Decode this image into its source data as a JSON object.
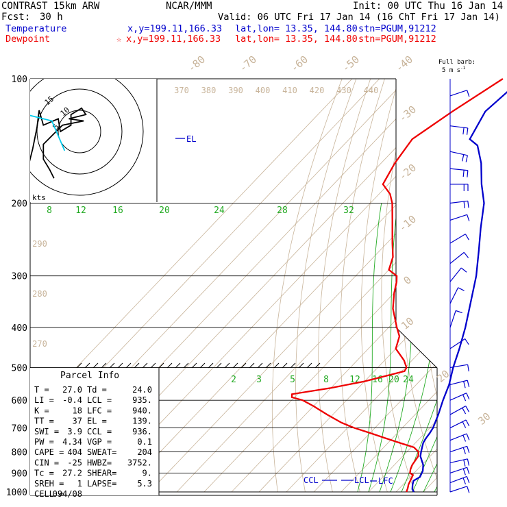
{
  "header": {
    "model": "CONTRAST 15km ARW",
    "center": "NCAR/MMM",
    "init": "Init: 00 UTC Thu 16 Jan 14",
    "fcst_label": "Fcst:",
    "fcst_value": "30 h",
    "valid": "Valid: 06 UTC Fri 17 Jan 14 (16 ChT Fri 17 Jan 14)",
    "temp_label": "Temperature",
    "temp_loc": "x,y=199.11,166.33",
    "temp_latlon": "lat,lon= 13.35, 144.80",
    "temp_stn": "stn=PGUM,91212",
    "dew_label": "Dewpoint",
    "dew_loc": "x,y=199.11,166.33",
    "dew_latlon": "lat,lon= 13.35, 144.80",
    "dew_stn": "stn=PGUM,91212",
    "barb_label_1": "Full barb:",
    "barb_label_2": "5 m s",
    "barb_label_exp": "-1"
  },
  "colors": {
    "temperature": "#0000cc",
    "dewpoint": "#ee0000",
    "isotherm": "#c8b49a",
    "mixing_ratio": "#22aa22",
    "isobar": "#000000",
    "hodo_low": "#00ccee"
  },
  "parcel_info": {
    "title": "Parcel Info",
    "rows": [
      [
        "T  =",
        "27.0",
        "Td =",
        "24.0"
      ],
      [
        "LI =",
        "-0.4",
        "LCL =",
        "935."
      ],
      [
        "K  =",
        "18",
        "LFC =",
        "940."
      ],
      [
        "TT =",
        "37",
        "EL =",
        "139."
      ],
      [
        "SWI =",
        "3.9",
        "CCL =",
        "936."
      ],
      [
        "PW =",
        "4.34",
        "VGP =",
        "0.1"
      ],
      [
        "CAPE =",
        "404",
        "SWEAT=",
        "204"
      ],
      [
        "CIN =",
        "-25",
        "HWBZ=",
        "3752."
      ],
      [
        "Tc =",
        "27.2",
        "SHEAR=",
        "9."
      ],
      [
        "SREH =",
        "1",
        "LAPSE=",
        "5.3"
      ],
      [
        "CELL =",
        "094/08",
        "",
        ""
      ]
    ]
  },
  "chart_data": {
    "type": "skew-t",
    "y_axis": "pressure (hPa), log scale",
    "pressure_ticks": [
      100,
      200,
      300,
      400,
      500,
      600,
      700,
      800,
      900,
      1000
    ],
    "isotherm_labels": [
      "-80",
      "-70",
      "-60",
      "-50",
      "-40",
      "-30",
      "-20",
      "-10",
      "0",
      "10",
      "20",
      "30",
      "40"
    ],
    "theta_labels": [
      "370",
      "380",
      "390",
      "400",
      "410",
      "420",
      "430",
      "440"
    ],
    "theta_left_labels": [
      "290",
      "280",
      "270"
    ],
    "mixing_ratio_labels_upper": [
      "8",
      "12",
      "16",
      "20",
      "24",
      "28",
      "32"
    ],
    "mixing_ratio_labels_lower": [
      "2",
      "3",
      "5",
      "8",
      "12",
      "16",
      "20",
      "24"
    ],
    "temperature_profile": [
      {
        "p": 1000,
        "t": 26.5
      },
      {
        "p": 985,
        "t": 25.0
      },
      {
        "p": 960,
        "t": 23.5
      },
      {
        "p": 940,
        "t": 22.5
      },
      {
        "p": 920,
        "t": 23.5
      },
      {
        "p": 890,
        "t": 22.5
      },
      {
        "p": 860,
        "t": 20.5
      },
      {
        "p": 840,
        "t": 18.5
      },
      {
        "p": 820,
        "t": 16.5
      },
      {
        "p": 800,
        "t": 15.2
      },
      {
        "p": 780,
        "t": 14.0
      },
      {
        "p": 760,
        "t": 12.8
      },
      {
        "p": 740,
        "t": 12.2
      },
      {
        "p": 720,
        "t": 11.8
      },
      {
        "p": 700,
        "t": 11.2
      },
      {
        "p": 650,
        "t": 8.5
      },
      {
        "p": 600,
        "t": 5.2
      },
      {
        "p": 550,
        "t": 2.0
      },
      {
        "p": 500,
        "t": -2.5
      },
      {
        "p": 450,
        "t": -6.8
      },
      {
        "p": 400,
        "t": -12.0
      },
      {
        "p": 350,
        "t": -18.5
      },
      {
        "p": 300,
        "t": -26.0
      },
      {
        "p": 260,
        "t": -34.0
      },
      {
        "p": 230,
        "t": -41.0
      },
      {
        "p": 200,
        "t": -48.5
      },
      {
        "p": 180,
        "t": -56.0
      },
      {
        "p": 160,
        "t": -63.5
      },
      {
        "p": 145,
        "t": -71.0
      },
      {
        "p": 140,
        "t": -76.0
      },
      {
        "p": 120,
        "t": -80.0
      },
      {
        "p": 100,
        "t": -78.0
      }
    ],
    "dewpoint_profile": [
      {
        "p": 1000,
        "t": 23.8
      },
      {
        "p": 980,
        "t": 23.0
      },
      {
        "p": 960,
        "t": 22.0
      },
      {
        "p": 930,
        "t": 21.0
      },
      {
        "p": 910,
        "t": 20.3
      },
      {
        "p": 900,
        "t": 18.5
      },
      {
        "p": 880,
        "t": 17.3
      },
      {
        "p": 860,
        "t": 16.5
      },
      {
        "p": 820,
        "t": 15.7
      },
      {
        "p": 800,
        "t": 14.3
      },
      {
        "p": 780,
        "t": 11.0
      },
      {
        "p": 760,
        "t": 4.0
      },
      {
        "p": 740,
        "t": -3.0
      },
      {
        "p": 720,
        "t": -10.0
      },
      {
        "p": 700,
        "t": -17.5
      },
      {
        "p": 680,
        "t": -24.0
      },
      {
        "p": 650,
        "t": -32.0
      },
      {
        "p": 620,
        "t": -40.0
      },
      {
        "p": 600,
        "t": -46.0
      },
      {
        "p": 590,
        "t": -51.0
      },
      {
        "p": 580,
        "t": -52.0
      },
      {
        "p": 560,
        "t": -40.0
      },
      {
        "p": 540,
        "t": -30.0
      },
      {
        "p": 510,
        "t": -19.0
      },
      {
        "p": 500,
        "t": -19.5
      },
      {
        "p": 480,
        "t": -23.0
      },
      {
        "p": 450,
        "t": -30.0
      },
      {
        "p": 420,
        "t": -33.0
      },
      {
        "p": 400,
        "t": -37.0
      },
      {
        "p": 360,
        "t": -45.0
      },
      {
        "p": 330,
        "t": -50.0
      },
      {
        "p": 310,
        "t": -53.0
      },
      {
        "p": 300,
        "t": -55.0
      },
      {
        "p": 290,
        "t": -60.0
      },
      {
        "p": 270,
        "t": -63.0
      },
      {
        "p": 250,
        "t": -68.0
      },
      {
        "p": 220,
        "t": -76.0
      },
      {
        "p": 200,
        "t": -82.0
      },
      {
        "p": 190,
        "t": -86.0
      },
      {
        "p": 180,
        "t": -92.0
      },
      {
        "p": 160,
        "t": -95.0
      },
      {
        "p": 140,
        "t": -97.0
      },
      {
        "p": 120,
        "t": -92.0
      },
      {
        "p": 100,
        "t": -85.0
      }
    ],
    "level_markers": [
      {
        "label": "EL",
        "p": 139
      },
      {
        "label": "CCL",
        "p": 936
      },
      {
        "label": "LCL",
        "p": 935
      },
      {
        "label": "LFC",
        "p": 940
      }
    ],
    "hodograph": {
      "unit_label": "kts",
      "ring_labels": [
        "5",
        "10",
        "15"
      ],
      "max_ring_kts": 15,
      "low_level": [
        [
          -3.5,
          -4.5
        ],
        [
          -6.5,
          2.5
        ],
        [
          -8.5,
          3
        ],
        [
          -12.5,
          4
        ],
        [
          -13,
          -2
        ],
        [
          -12,
          -8
        ],
        [
          -14,
          -11
        ]
      ],
      "upper": [
        [
          -12,
          -8
        ],
        [
          -11,
          -4
        ],
        [
          -10,
          1
        ],
        [
          -9.5,
          5
        ],
        [
          -8.5,
          1.5
        ],
        [
          -5,
          3
        ],
        [
          -4.5,
          0
        ],
        [
          -2,
          1.5
        ],
        [
          -2,
          4
        ],
        [
          0.5,
          5.5
        ],
        [
          1.5,
          4
        ],
        [
          -2.5,
          3
        ],
        [
          1,
          2.5
        ],
        [
          -4,
          1.5
        ],
        [
          -5.5,
          0
        ],
        [
          -8.5,
          -3
        ],
        [
          -8.5,
          -6.5
        ],
        [
          -7,
          -9
        ],
        [
          -6,
          -11
        ]
      ],
      "storm_motion_arrow": [
        [
          -13,
          -10
        ],
        [
          -16,
          -14
        ]
      ]
    },
    "wind_barbs": [
      {
        "p": 110,
        "u": 6,
        "v": 2
      },
      {
        "p": 130,
        "u": 8,
        "v": -1
      },
      {
        "p": 150,
        "u": 9,
        "v": -2
      },
      {
        "p": 165,
        "u": 10,
        "v": -1
      },
      {
        "p": 180,
        "u": 9,
        "v": 0
      },
      {
        "p": 200,
        "u": 8,
        "v": 1
      },
      {
        "p": 220,
        "u": 6,
        "v": 2
      },
      {
        "p": 250,
        "u": 5,
        "v": 3
      },
      {
        "p": 280,
        "u": 5,
        "v": 4
      },
      {
        "p": 310,
        "u": 4,
        "v": 5
      },
      {
        "p": 350,
        "u": 2,
        "v": 4
      },
      {
        "p": 400,
        "u": 1,
        "v": 3
      },
      {
        "p": 450,
        "u": 3,
        "v": 2
      },
      {
        "p": 500,
        "u": 6,
        "v": 1
      },
      {
        "p": 550,
        "u": 8,
        "v": 2
      },
      {
        "p": 600,
        "u": 9,
        "v": 4
      },
      {
        "p": 650,
        "u": 9,
        "v": 5
      },
      {
        "p": 700,
        "u": 10,
        "v": 5
      },
      {
        "p": 750,
        "u": 10,
        "v": 4
      },
      {
        "p": 800,
        "u": 9,
        "v": 3
      },
      {
        "p": 850,
        "u": 9,
        "v": 2
      },
      {
        "p": 900,
        "u": 9,
        "v": 3
      },
      {
        "p": 950,
        "u": 8,
        "v": 3
      },
      {
        "p": 1000,
        "u": 6,
        "v": 2
      }
    ]
  }
}
